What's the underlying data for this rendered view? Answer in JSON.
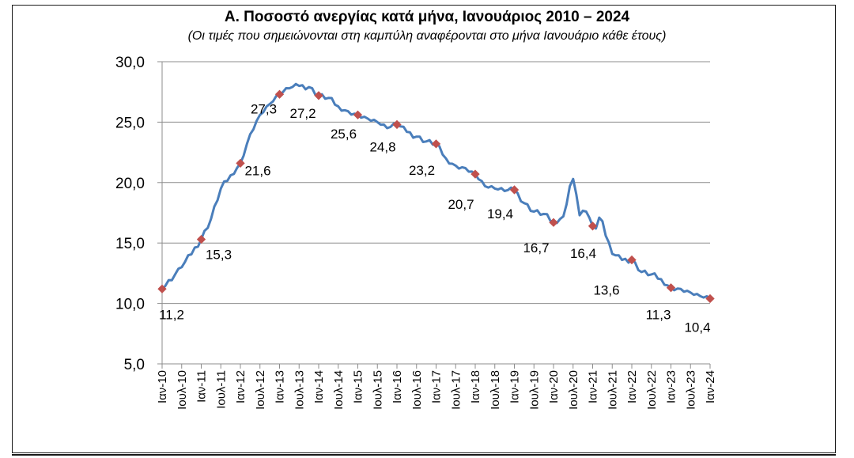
{
  "chart_data": {
    "type": "line",
    "title": "A. Ποσοστό ανεργίας κατά μήνα, Ιανουάριος 2010 – 2024",
    "subtitle": "(Οι τιμές που σημειώνονται στη καμπύλη αναφέρονται στο μήνα Ιανουάριο κάθε έτους)",
    "ylim": [
      5,
      30
    ],
    "yticks": [
      5,
      10,
      15,
      20,
      25,
      30
    ],
    "ytick_labels": [
      "5,0",
      "10,0",
      "15,0",
      "20,0",
      "25,0",
      "30,0"
    ],
    "xtick_labels": [
      "Ιαν-10",
      "Ιουλ-10",
      "Ιαν-11",
      "Ιουλ-11",
      "Ιαν-12",
      "Ιουλ-12",
      "Ιαν-13",
      "Ιουλ-13",
      "Ιαν-14",
      "Ιουλ-14",
      "Ιαν-15",
      "Ιουλ-15",
      "Ιαν-16",
      "Ιουλ-16",
      "Ιαν-17",
      "Ιουλ-17",
      "Ιαν-18",
      "Ιουλ-18",
      "Ιαν-19",
      "Ιουλ-19",
      "Ιαν-20",
      "Ιουλ-20",
      "Ιαν-21",
      "Ιουλ-21",
      "Ιαν-22",
      "Ιουλ-22",
      "Ιαν-23",
      "Ιουλ-23",
      "Ιαν-24"
    ],
    "line_color": "#4a7ebb",
    "marker_color": "#c0504d",
    "grid": true,
    "anchor_points": [
      [
        0,
        11.2
      ],
      [
        6,
        13.0
      ],
      [
        12,
        15.3
      ],
      [
        15,
        17.0
      ],
      [
        18,
        19.5
      ],
      [
        21,
        20.6
      ],
      [
        24,
        21.6
      ],
      [
        27,
        24.0
      ],
      [
        30,
        25.6
      ],
      [
        33,
        26.5
      ],
      [
        36,
        27.3
      ],
      [
        39,
        27.8
      ],
      [
        42,
        28.0
      ],
      [
        45,
        27.9
      ],
      [
        48,
        27.2
      ],
      [
        51,
        27.0
      ],
      [
        54,
        26.3
      ],
      [
        57,
        25.9
      ],
      [
        60,
        25.6
      ],
      [
        63,
        25.3
      ],
      [
        66,
        25.0
      ],
      [
        69,
        24.5
      ],
      [
        72,
        24.8
      ],
      [
        75,
        24.2
      ],
      [
        78,
        23.8
      ],
      [
        81,
        23.4
      ],
      [
        84,
        23.2
      ],
      [
        87,
        22.0
      ],
      [
        90,
        21.4
      ],
      [
        93,
        21.2
      ],
      [
        96,
        20.7
      ],
      [
        99,
        19.7
      ],
      [
        102,
        19.5
      ],
      [
        105,
        19.3
      ],
      [
        108,
        19.4
      ],
      [
        111,
        18.3
      ],
      [
        114,
        17.6
      ],
      [
        117,
        17.4
      ],
      [
        120,
        16.7
      ],
      [
        123,
        17.2
      ],
      [
        124,
        18.2
      ],
      [
        125,
        19.7
      ],
      [
        126,
        20.3
      ],
      [
        127,
        19.0
      ],
      [
        128,
        17.3
      ],
      [
        130,
        17.6
      ],
      [
        132,
        16.4
      ],
      [
        133,
        16.2
      ],
      [
        134,
        17.1
      ],
      [
        135,
        16.8
      ],
      [
        136,
        15.6
      ],
      [
        138,
        14.1
      ],
      [
        141,
        13.6
      ],
      [
        144,
        13.6
      ],
      [
        147,
        12.6
      ],
      [
        150,
        12.4
      ],
      [
        153,
        12.0
      ],
      [
        156,
        11.3
      ],
      [
        159,
        11.2
      ],
      [
        162,
        10.9
      ],
      [
        165,
        10.6
      ],
      [
        168,
        10.4
      ]
    ],
    "january_values": [
      11.2,
      15.3,
      21.6,
      27.3,
      27.2,
      25.6,
      24.8,
      23.2,
      20.7,
      19.4,
      16.7,
      16.4,
      13.6,
      11.3,
      10.4
    ],
    "january_labels": [
      "11,2",
      "15,3",
      "21,6",
      "27,3",
      "27,2",
      "25,6",
      "24,8",
      "23,2",
      "20,7",
      "19,4",
      "16,7",
      "16,4",
      "13,6",
      "11,3",
      "10,4"
    ]
  }
}
